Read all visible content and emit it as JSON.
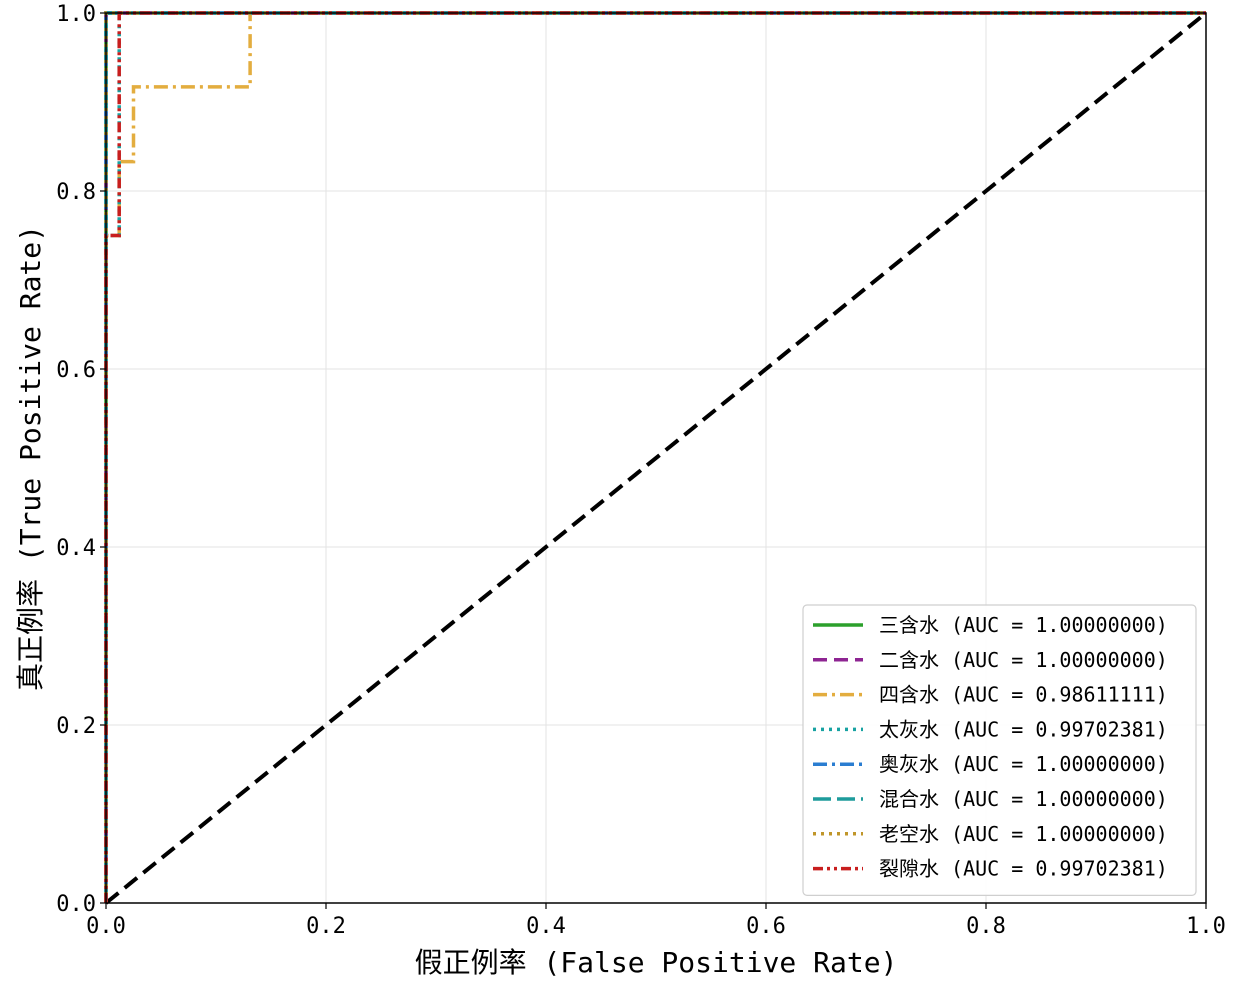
{
  "chart_data": {
    "type": "line",
    "xlabel": "假正例率 (False Positive Rate)",
    "ylabel": "真正例率 (True Positive Rate)",
    "xlim": [
      0.0,
      1.0
    ],
    "ylim": [
      0.0,
      1.0
    ],
    "xticks": [
      "0.0",
      "0.2",
      "0.4",
      "0.6",
      "0.8",
      "1.0"
    ],
    "yticks": [
      "0.0",
      "0.2",
      "0.4",
      "0.6",
      "0.8",
      "1.0"
    ],
    "grid": true,
    "legend_position": "lower-right",
    "series": [
      {
        "name": "三含水",
        "legend": "三含水 (AUC = 1.00000000)",
        "auc": 1.0,
        "color": "#2ca02c",
        "dash": "solid",
        "x": [
          0.0,
          0.0,
          1.0
        ],
        "y": [
          0.0,
          1.0,
          1.0
        ]
      },
      {
        "name": "二含水",
        "legend": "二含水 (AUC = 1.00000000)",
        "auc": 1.0,
        "color": "#8e2492",
        "dash": "dashed",
        "x": [
          0.0,
          0.0,
          1.0
        ],
        "y": [
          0.0,
          1.0,
          1.0
        ]
      },
      {
        "name": "四含水",
        "legend": "四含水 (AUC = 0.98611111)",
        "auc": 0.98611111,
        "color": "#e3ad3f",
        "dash": "dashdot",
        "x": [
          0.0,
          0.0,
          0.012,
          0.012,
          0.025,
          0.025,
          0.131,
          0.131,
          1.0
        ],
        "y": [
          0.0,
          0.75,
          0.75,
          0.833,
          0.833,
          0.917,
          0.917,
          1.0,
          1.0
        ]
      },
      {
        "name": "太灰水",
        "legend": "太灰水 (AUC = 0.99702381)",
        "auc": 0.99702381,
        "color": "#17a2a2",
        "dash": "dotted",
        "x": [
          0.0,
          0.0,
          0.012,
          0.012,
          1.0
        ],
        "y": [
          0.0,
          0.75,
          0.75,
          1.0,
          1.0
        ]
      },
      {
        "name": "奥灰水",
        "legend": "奥灰水 (AUC = 1.00000000)",
        "auc": 1.0,
        "color": "#2a7dd1",
        "dash": "dashdot",
        "x": [
          0.0,
          0.0,
          1.0
        ],
        "y": [
          0.0,
          1.0,
          1.0
        ]
      },
      {
        "name": "混合水",
        "legend": "混合水 (AUC = 1.00000000)",
        "auc": 1.0,
        "color": "#1e9c9c",
        "dash": "longdash",
        "x": [
          0.0,
          0.0,
          1.0
        ],
        "y": [
          0.0,
          1.0,
          1.0
        ]
      },
      {
        "name": "老空水",
        "legend": "老空水 (AUC = 1.00000000)",
        "auc": 1.0,
        "color": "#c0962a",
        "dash": "dotted",
        "x": [
          0.0,
          0.0,
          1.0
        ],
        "y": [
          0.0,
          1.0,
          1.0
        ]
      },
      {
        "name": "裂隙水",
        "legend": "裂隙水 (AUC = 0.99702381)",
        "auc": 0.99702381,
        "color": "#c81e1e",
        "dash": "dashdotdot",
        "x": [
          0.0,
          0.0,
          0.012,
          0.012,
          1.0
        ],
        "y": [
          0.0,
          0.75,
          0.75,
          1.0,
          1.0
        ]
      }
    ],
    "reference_line": {
      "x": [
        0.0,
        1.0
      ],
      "y": [
        0.0,
        1.0
      ],
      "color": "#000000",
      "dash": "dashed"
    }
  }
}
